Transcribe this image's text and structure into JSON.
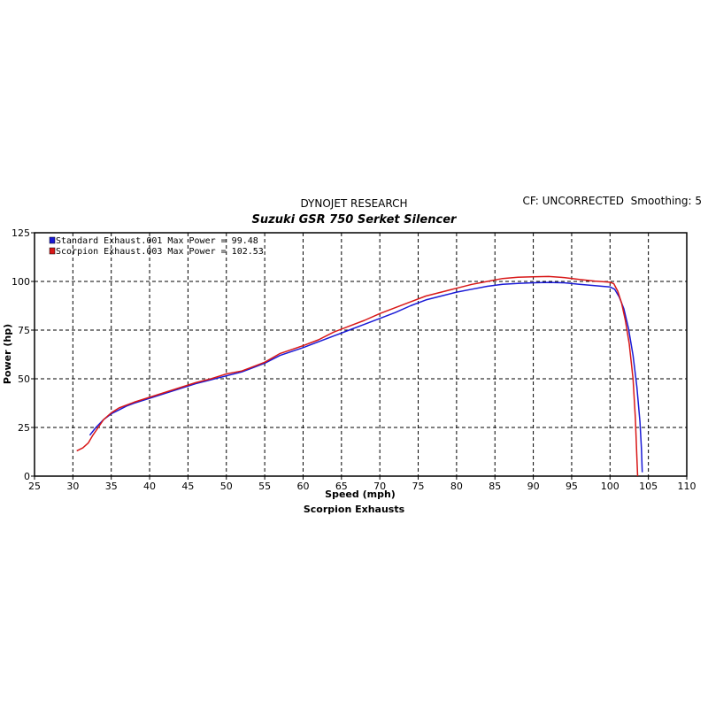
{
  "chart_data": {
    "type": "line",
    "title": "DYNOJET RESEARCH",
    "subtitle": "Suzuki GSR 750 Serket Silencer",
    "corner_text": "CF: UNCORRECTED  Smoothing: 5",
    "footer": "Scorpion Exhausts",
    "xlabel": "Speed (mph)",
    "ylabel": "Power (hp)",
    "xlim": [
      25,
      110
    ],
    "ylim": [
      0,
      125
    ],
    "xticks": [
      "25",
      "30",
      "35",
      "40",
      "45",
      "50",
      "55",
      "60",
      "65",
      "70",
      "75",
      "80",
      "85",
      "90",
      "95",
      "100",
      "105",
      "110"
    ],
    "yticks": [
      "0",
      "25",
      "50",
      "75",
      "100",
      "125"
    ],
    "grid": true,
    "legend_position": "top-left",
    "series": [
      {
        "name": "Standard Exhaust.001 Max Power = 99.48",
        "color": "#1a1ad6",
        "points": [
          [
            32.2,
            21
          ],
          [
            33,
            25
          ],
          [
            34,
            29
          ],
          [
            35,
            32
          ],
          [
            36,
            34
          ],
          [
            37,
            36
          ],
          [
            38,
            37.5
          ],
          [
            40,
            40
          ],
          [
            42,
            42.5
          ],
          [
            44,
            45
          ],
          [
            46,
            47.5
          ],
          [
            48,
            49.5
          ],
          [
            50,
            51.5
          ],
          [
            52,
            53.5
          ],
          [
            53,
            55
          ],
          [
            55,
            58
          ],
          [
            57,
            62
          ],
          [
            60,
            66
          ],
          [
            62,
            69
          ],
          [
            64,
            72
          ],
          [
            66,
            75
          ],
          [
            68,
            78
          ],
          [
            70,
            81
          ],
          [
            72,
            84
          ],
          [
            74,
            87.5
          ],
          [
            76,
            90.5
          ],
          [
            78,
            92.5
          ],
          [
            80,
            94.5
          ],
          [
            82,
            96
          ],
          [
            84,
            97.5
          ],
          [
            86,
            98.5
          ],
          [
            88,
            99
          ],
          [
            90,
            99.3
          ],
          [
            92,
            99.48
          ],
          [
            94,
            99.3
          ],
          [
            96,
            98.5
          ],
          [
            98,
            97.8
          ],
          [
            100,
            97.2
          ],
          [
            100.6,
            96
          ],
          [
            101.2,
            92
          ],
          [
            101.8,
            86
          ],
          [
            102.4,
            76
          ],
          [
            103,
            62
          ],
          [
            103.5,
            46
          ],
          [
            103.9,
            28
          ],
          [
            104.1,
            14
          ],
          [
            104.2,
            2
          ]
        ]
      },
      {
        "name": "Scorpion Exhaust.003 Max Power = 102.53",
        "color": "#d81818",
        "points": [
          [
            30.5,
            13
          ],
          [
            31.3,
            14.5
          ],
          [
            32,
            17
          ],
          [
            32.6,
            21
          ],
          [
            33.3,
            25
          ],
          [
            34,
            29
          ],
          [
            35,
            32.5
          ],
          [
            36,
            35
          ],
          [
            37,
            36.5
          ],
          [
            38,
            38
          ],
          [
            40,
            40.5
          ],
          [
            42,
            43
          ],
          [
            44,
            45.5
          ],
          [
            46,
            48
          ],
          [
            48,
            50
          ],
          [
            50,
            52.5
          ],
          [
            52,
            54
          ],
          [
            53,
            55.5
          ],
          [
            55,
            58.5
          ],
          [
            57,
            63
          ],
          [
            60,
            67
          ],
          [
            62,
            70
          ],
          [
            64,
            74
          ],
          [
            66,
            77
          ],
          [
            68,
            80
          ],
          [
            70,
            83.5
          ],
          [
            72,
            86.5
          ],
          [
            74,
            89.5
          ],
          [
            76,
            92.5
          ],
          [
            78,
            94.5
          ],
          [
            80,
            96.5
          ],
          [
            82,
            98.5
          ],
          [
            84,
            100
          ],
          [
            86,
            101.5
          ],
          [
            88,
            102.2
          ],
          [
            90,
            102.4
          ],
          [
            92,
            102.53
          ],
          [
            94,
            102
          ],
          [
            96,
            101
          ],
          [
            98,
            100.2
          ],
          [
            100,
            99.6
          ],
          [
            100.5,
            98.8
          ],
          [
            101,
            95
          ],
          [
            101.5,
            89
          ],
          [
            102,
            80
          ],
          [
            102.5,
            68
          ],
          [
            103,
            50
          ],
          [
            103.3,
            30
          ],
          [
            103.5,
            10
          ],
          [
            103.6,
            0
          ]
        ]
      }
    ]
  }
}
